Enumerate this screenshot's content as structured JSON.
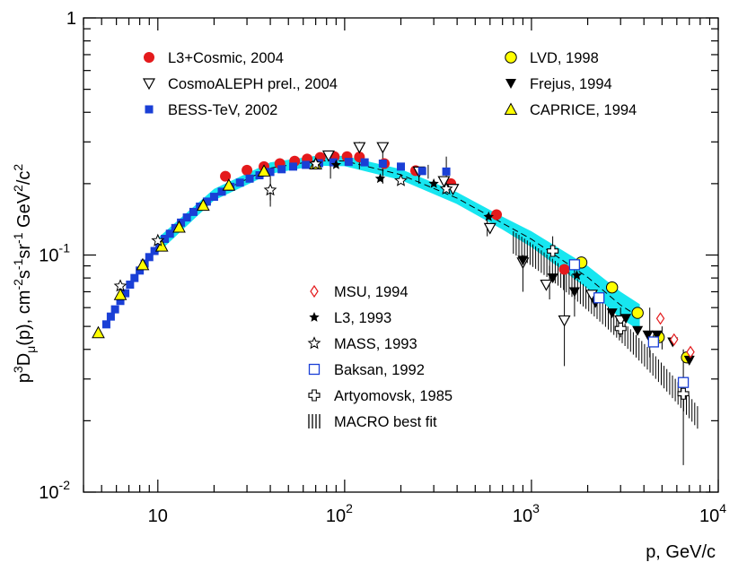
{
  "chart_data": {
    "type": "scatter",
    "x_scale": "log",
    "y_scale": "log",
    "xlim": [
      4,
      10000
    ],
    "ylim": [
      0.01,
      1
    ],
    "grid": false,
    "xlabel": "p, GeV/c",
    "ylabel": {
      "base": "p",
      "sup1": "3",
      "mid1": "D",
      "sub1": "μ",
      "mid2": "(p), cm",
      "sup2": "-2",
      "mid3": "s",
      "sup3": "-1",
      "mid4": "sr",
      "sup4": "-1",
      "mid5": " GeV",
      "sup5": "2",
      "mid6": "/c",
      "sup6": "2"
    },
    "x_tick_labels": [
      {
        "value": 10,
        "label": "10",
        "exp": ""
      },
      {
        "value": 100,
        "label": "10",
        "exp": "2"
      },
      {
        "value": 1000,
        "label": "10",
        "exp": "3"
      },
      {
        "value": 10000,
        "label": "10",
        "exp": "4"
      }
    ],
    "y_tick_labels": [
      {
        "value": 0.01,
        "label": "10",
        "exp": "-2"
      },
      {
        "value": 0.1,
        "label": "10",
        "exp": "-1"
      },
      {
        "value": 1,
        "label": "1",
        "exp": ""
      }
    ],
    "legend_top_left": [
      {
        "label": "L3+Cosmic, 2004",
        "marker": "filled-circle",
        "color": "#e41a1c"
      },
      {
        "label": "CosmoALEPH prel., 2004",
        "marker": "open-triangle-down",
        "color": "#000000"
      },
      {
        "label": "BESS-TeV, 2002",
        "marker": "filled-square",
        "color": "#1a3fd6"
      }
    ],
    "legend_top_right": [
      {
        "label": "LVD, 1998",
        "marker": "yellow-circle",
        "color": "#ffff00"
      },
      {
        "label": "Frejus, 1994",
        "marker": "filled-triangle-down",
        "color": "#000000"
      },
      {
        "label": "CAPRICE, 1994",
        "marker": "yellow-triangle",
        "color": "#ffff00"
      }
    ],
    "legend_middle": [
      {
        "label": "MSU, 1994",
        "marker": "open-diamond",
        "color": "#e41a1c"
      },
      {
        "label": "L3, 1993",
        "marker": "filled-star",
        "color": "#000000"
      },
      {
        "label": "MASS, 1993",
        "marker": "open-star",
        "color": "#000000"
      },
      {
        "label": "Baksan, 1992",
        "marker": "open-square",
        "color": "#1a3fd6"
      },
      {
        "label": "Artyomovsk, 1985",
        "marker": "open-cross",
        "color": "#000000"
      },
      {
        "label": "MACRO best fit",
        "marker": "hatched-band",
        "color": "#000000"
      }
    ],
    "band": {
      "color": "#17e6f0",
      "points": [
        [
          10,
          0.102,
          0.118
        ],
        [
          20,
          0.17,
          0.19
        ],
        [
          40,
          0.22,
          0.246
        ],
        [
          70,
          0.238,
          0.262
        ],
        [
          100,
          0.237,
          0.262
        ],
        [
          200,
          0.207,
          0.23
        ],
        [
          400,
          0.164,
          0.184
        ],
        [
          700,
          0.128,
          0.145
        ],
        [
          1000,
          0.108,
          0.126
        ],
        [
          2000,
          0.072,
          0.09
        ],
        [
          3000,
          0.054,
          0.07
        ],
        [
          3800,
          0.048,
          0.062
        ]
      ]
    },
    "series": [
      {
        "name": "L3+Cosmic, 2004",
        "marker": "filled-circle",
        "color": "#e41a1c",
        "points": [
          [
            23,
            0.215
          ],
          [
            30,
            0.228
          ],
          [
            37,
            0.236
          ],
          [
            45,
            0.243
          ],
          [
            54,
            0.249
          ],
          [
            63,
            0.254
          ],
          [
            74,
            0.258
          ],
          [
            88,
            0.26
          ],
          [
            103,
            0.26
          ],
          [
            120,
            0.259
          ],
          [
            163,
            0.243
          ],
          [
            240,
            0.227
          ],
          [
            370,
            0.2
          ],
          [
            650,
            0.148
          ],
          [
            1500,
            0.087
          ]
        ]
      },
      {
        "name": "CosmoALEPH prel., 2004",
        "marker": "open-triangle-down",
        "color": "#000000",
        "points": [
          [
            82,
            0.263,
            0.0
          ],
          [
            120,
            0.285,
            0.0
          ],
          [
            160,
            0.285,
            0.0
          ],
          [
            250,
            0.225,
            0.0
          ],
          [
            340,
            0.205,
            0.0
          ],
          [
            380,
            0.19,
            0.02
          ],
          [
            600,
            0.13,
            0.01
          ],
          [
            900,
            0.093,
            0.01
          ],
          [
            1200,
            0.075,
            0.01
          ],
          [
            1500,
            0.053,
            0.02
          ],
          [
            2100,
            0.068,
            0.012
          ],
          [
            3000,
            0.053,
            0.008
          ]
        ]
      },
      {
        "name": "BESS-TeV, 2002",
        "marker": "filled-square",
        "color": "#1a3fd6",
        "points": [
          [
            5.3,
            0.051
          ],
          [
            5.6,
            0.055
          ],
          [
            5.9,
            0.059
          ],
          [
            6.3,
            0.064
          ],
          [
            6.7,
            0.069
          ],
          [
            7.1,
            0.075
          ],
          [
            7.5,
            0.08
          ],
          [
            8,
            0.086
          ],
          [
            8.5,
            0.092
          ],
          [
            9,
            0.098
          ],
          [
            9.6,
            0.104
          ],
          [
            10.2,
            0.11
          ],
          [
            10.9,
            0.117
          ],
          [
            11.6,
            0.123
          ],
          [
            12.4,
            0.13
          ],
          [
            13.3,
            0.137
          ],
          [
            14.3,
            0.144
          ],
          [
            15.5,
            0.152
          ],
          [
            16.8,
            0.16
          ],
          [
            18.3,
            0.168
          ],
          [
            20,
            0.176
          ],
          [
            22,
            0.185
          ],
          [
            24.5,
            0.194
          ],
          [
            27.5,
            0.202
          ],
          [
            31,
            0.21
          ],
          [
            35,
            0.217
          ],
          [
            40,
            0.224
          ],
          [
            46,
            0.23
          ],
          [
            53,
            0.236
          ],
          [
            62,
            0.24
          ],
          [
            73,
            0.244
          ],
          [
            87,
            0.246
          ],
          [
            105,
            0.247
          ],
          [
            128,
            0.246
          ],
          [
            160,
            0.243
          ],
          [
            200,
            0.236
          ],
          [
            260,
            0.226
          ],
          [
            350,
            0.225
          ]
        ]
      },
      {
        "name": "LVD, 1998",
        "marker": "yellow-circle",
        "color": "#ffff00",
        "points": [
          [
            1850,
            0.093
          ],
          [
            2700,
            0.073
          ],
          [
            3700,
            0.057
          ],
          [
            4800,
            0.045
          ],
          [
            6800,
            0.037
          ]
        ]
      },
      {
        "name": "Frejus, 1994",
        "marker": "filled-triangle-down",
        "color": "#000000",
        "points": [
          [
            900,
            0.095
          ],
          [
            1300,
            0.08
          ],
          [
            1700,
            0.07
          ],
          [
            2200,
            0.063
          ],
          [
            2700,
            0.057
          ],
          [
            3200,
            0.054
          ],
          [
            3700,
            0.048
          ],
          [
            4200,
            0.046
          ],
          [
            4700,
            0.046
          ],
          [
            5700,
            0.043
          ],
          [
            7000,
            0.036
          ]
        ]
      },
      {
        "name": "CAPRICE, 1994",
        "marker": "yellow-triangle",
        "color": "#ffff00",
        "points": [
          [
            4.8,
            0.047
          ],
          [
            6.3,
            0.068
          ],
          [
            8.3,
            0.091
          ],
          [
            10.5,
            0.109
          ],
          [
            13,
            0.131
          ],
          [
            17.5,
            0.162
          ],
          [
            24,
            0.197
          ],
          [
            37,
            0.226
          ],
          [
            70,
            0.242
          ]
        ]
      },
      {
        "name": "MSU, 1994",
        "marker": "open-diamond",
        "color": "#e41a1c",
        "points": [
          [
            4900,
            0.054
          ],
          [
            5800,
            0.044
          ],
          [
            7100,
            0.039
          ]
        ]
      },
      {
        "name": "L3, 1993",
        "marker": "filled-star",
        "color": "#000000",
        "points": [
          [
            90,
            0.24
          ],
          [
            155,
            0.21
          ],
          [
            300,
            0.2
          ],
          [
            590,
            0.145
          ],
          [
            1750,
            0.082
          ],
          [
            4600,
            0.043
          ]
        ]
      },
      {
        "name": "MASS, 1993",
        "marker": "open-star",
        "color": "#000000",
        "points": [
          [
            6.3,
            0.074
          ],
          [
            10,
            0.115
          ],
          [
            40,
            0.188
          ],
          [
            70,
            0.242
          ],
          [
            200,
            0.206
          ],
          [
            350,
            0.19
          ]
        ]
      },
      {
        "name": "Baksan, 1992",
        "marker": "open-square",
        "color": "#1a3fd6",
        "points": [
          [
            1700,
            0.091
          ],
          [
            2300,
            0.066
          ],
          [
            4500,
            0.043
          ],
          [
            6500,
            0.029
          ]
        ]
      },
      {
        "name": "Artyomovsk, 1985",
        "marker": "open-cross",
        "color": "#000000",
        "points": [
          [
            1300,
            0.104
          ],
          [
            3000,
            0.049
          ],
          [
            6500,
            0.026
          ]
        ]
      }
    ]
  }
}
